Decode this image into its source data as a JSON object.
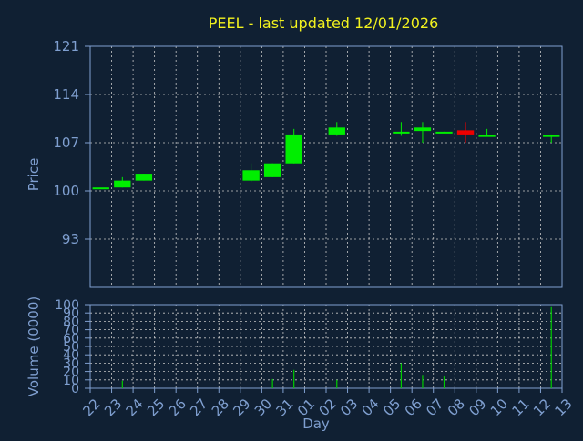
{
  "chart_data": {
    "type": "candlestick",
    "title": "PEEL - last updated 12/01/2026",
    "xlabel": "Day",
    "x_ticks": [
      "22",
      "23",
      "24",
      "25",
      "26",
      "27",
      "28",
      "29",
      "30",
      "31",
      "01",
      "02",
      "03",
      "04",
      "05",
      "06",
      "07",
      "08",
      "09",
      "10",
      "11",
      "12",
      "13"
    ],
    "price_panel": {
      "ylabel": "Price",
      "ylim": [
        86,
        121
      ],
      "y_ticks": [
        "121",
        "114",
        "107",
        "100",
        "93"
      ],
      "y_tick_values": [
        121,
        114,
        107,
        100,
        93
      ],
      "candles": [
        {
          "day": "22",
          "open": 100.5,
          "close": 100.5,
          "high": 100.5,
          "low": 100.5
        },
        {
          "day": "23",
          "open": 100.5,
          "close": 101.5,
          "high": 102.0,
          "low": 100.5
        },
        {
          "day": "24",
          "open": 101.5,
          "close": 102.5,
          "high": 102.5,
          "low": 101.5
        },
        {
          "day": "29",
          "open": 101.5,
          "close": 103.0,
          "high": 104.0,
          "low": 101.3
        },
        {
          "day": "30",
          "open": 102.0,
          "close": 104.0,
          "high": 104.0,
          "low": 102.0
        },
        {
          "day": "31",
          "open": 104.0,
          "close": 108.2,
          "high": 109.0,
          "low": 104.0
        },
        {
          "day": "02",
          "open": 108.2,
          "close": 109.2,
          "high": 110.0,
          "low": 108.0
        },
        {
          "day": "05",
          "open": 108.5,
          "close": 108.6,
          "high": 110.0,
          "low": 108.0
        },
        {
          "day": "06",
          "open": 108.7,
          "close": 109.2,
          "high": 110.0,
          "low": 107.0
        },
        {
          "day": "07",
          "open": 108.5,
          "close": 108.6,
          "high": 108.6,
          "low": 108.5
        },
        {
          "day": "08",
          "open": 108.8,
          "close": 108.2,
          "high": 110.0,
          "low": 107.0
        },
        {
          "day": "09",
          "open": 108.0,
          "close": 108.1,
          "high": 109.0,
          "low": 108.0
        },
        {
          "day": "12",
          "open": 108.0,
          "close": 108.1,
          "high": 108.2,
          "low": 107.0
        }
      ]
    },
    "volume_panel": {
      "ylabel": "Volume (0000)",
      "ylim": [
        0,
        100
      ],
      "y_ticks": [
        "100",
        "90",
        "80",
        "70",
        "60",
        "50",
        "40",
        "30",
        "20",
        "10",
        "0"
      ],
      "y_tick_values": [
        100,
        90,
        80,
        70,
        60,
        50,
        40,
        30,
        20,
        10,
        0
      ],
      "bars": [
        {
          "day": "23",
          "value": 9
        },
        {
          "day": "30",
          "value": 11
        },
        {
          "day": "31",
          "value": 22
        },
        {
          "day": "02",
          "value": 10
        },
        {
          "day": "05",
          "value": 30
        },
        {
          "day": "06",
          "value": 16
        },
        {
          "day": "07",
          "value": 14
        },
        {
          "day": "12",
          "value": 97
        }
      ]
    },
    "colors": {
      "background": "#102033",
      "plot_background": "#102033",
      "axis": "#7f9fd0",
      "grid": "#c8c8c8",
      "title": "#f2f21e",
      "up": "#00ee00",
      "down": "#ee0000",
      "volume": "#00cc00"
    },
    "grid": true
  }
}
